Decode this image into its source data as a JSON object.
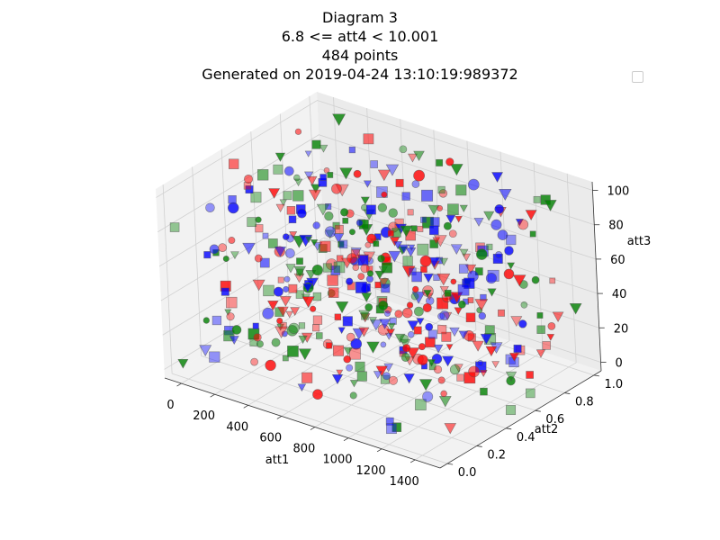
{
  "title": {
    "line1": "Diagram 3",
    "line2": "6.8 <= att4 < 10.001",
    "line3": "484 points",
    "line4": "Generated on 2019-04-24 13:10:19:989372"
  },
  "chart_data": {
    "type": "scatter",
    "projection": "3d",
    "xlabel": "att1",
    "ylabel": "att2",
    "zlabel": "att3",
    "xlim": [
      -100,
      1550
    ],
    "ylim": [
      -0.05,
      1.05
    ],
    "zlim": [
      -5,
      105
    ],
    "xticks": [
      "0",
      "200",
      "400",
      "600",
      "800",
      "1000",
      "1200",
      "1400"
    ],
    "yticks": [
      "0.0",
      "0.2",
      "0.4",
      "0.6",
      "0.8",
      "1.0"
    ],
    "zticks": [
      "0",
      "20",
      "40",
      "60",
      "80",
      "100"
    ],
    "grid": true,
    "legend": "top-right (empty)",
    "colors": {
      "red": "#ff0000",
      "green": "#008000",
      "blue": "#0000ff"
    },
    "marker_types": [
      "circle",
      "square",
      "triangle-down"
    ],
    "point_count": 484,
    "point_sample_note": "Points are scattered uniformly over the full x/y/z ranges in three colors and three marker shapes."
  }
}
